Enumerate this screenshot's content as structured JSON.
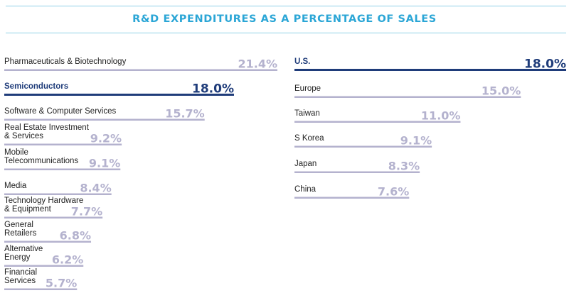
{
  "colors": {
    "bar": "#b4b2ce",
    "highlight": "#1f3c7a",
    "title": "#2ba6d6",
    "rule": "#8fd1e6"
  },
  "chart_data": [
    {
      "type": "bar",
      "orientation": "horizontal",
      "title": "R&D EXPENDITURES AS A PERCENTAGE OF SALES",
      "categories": [
        "Pharmaceuticals & Biotechnology",
        "Semiconductors",
        "Software & Computer Services",
        "Real Estate Investment & Services",
        "Mobile Telecommunications",
        "Media",
        "Technology Hardware & Equipment",
        "General Retailers",
        "Alternative Energy",
        "Financial Services"
      ],
      "values": [
        21.4,
        18.0,
        15.7,
        9.2,
        9.1,
        8.4,
        7.7,
        6.8,
        6.2,
        5.7
      ],
      "value_labels": [
        "21.4%",
        "18.0%",
        "15.7%",
        "9.2%",
        "9.1%",
        "8.4%",
        "7.7%",
        "6.8%",
        "6.2%",
        "5.7%"
      ],
      "highlight": [
        "Semiconductors"
      ]
    },
    {
      "type": "bar",
      "orientation": "horizontal",
      "categories": [
        "U.S.",
        "Europe",
        "Taiwan",
        "S Korea",
        "Japan",
        "China"
      ],
      "values": [
        18.0,
        15.0,
        11.0,
        9.1,
        8.3,
        7.6
      ],
      "value_labels": [
        "18.0%",
        "15.0%",
        "11.0%",
        "9.1%",
        "8.3%",
        "7.6%"
      ],
      "highlight": [
        "U.S."
      ]
    }
  ]
}
